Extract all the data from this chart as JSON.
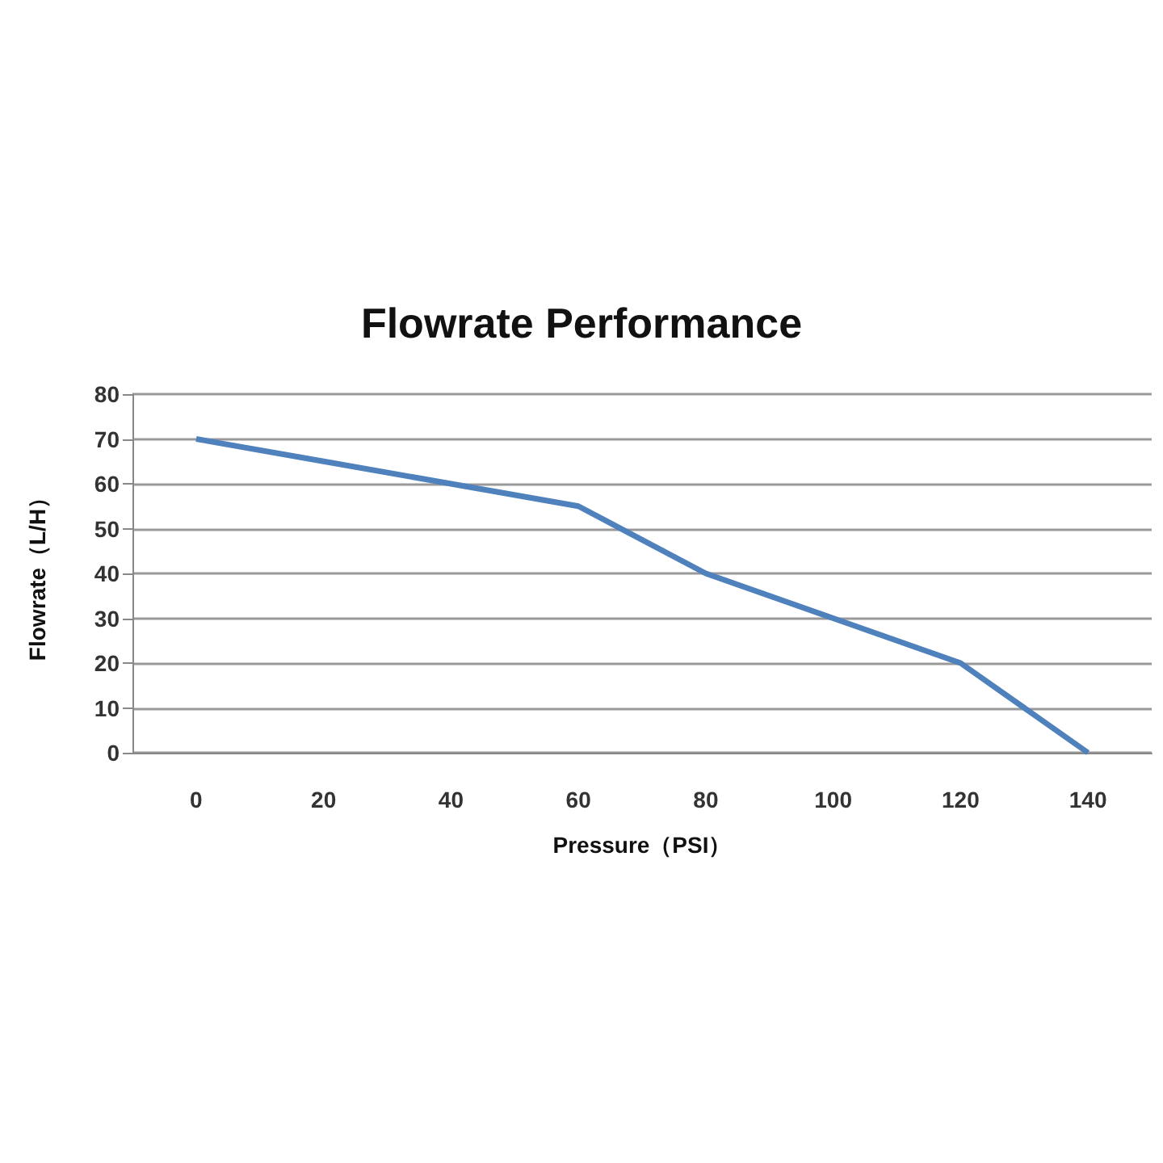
{
  "chart_data": {
    "type": "line",
    "title": "Flowrate Performance",
    "xlabel": "Pressure（PSI）",
    "ylabel": "Flowrate（L/H）",
    "categories": [
      "0",
      "20",
      "40",
      "60",
      "80",
      "100",
      "120",
      "140"
    ],
    "series": [
      {
        "color": "#4f81bd",
        "values": [
          70,
          65,
          60,
          55,
          40,
          30,
          20,
          0
        ]
      }
    ],
    "ylim": [
      0,
      80
    ],
    "yticks": [
      0,
      10,
      20,
      30,
      40,
      50,
      60,
      70,
      80
    ],
    "grid": "y",
    "marker": "none",
    "line_style": "solid"
  }
}
